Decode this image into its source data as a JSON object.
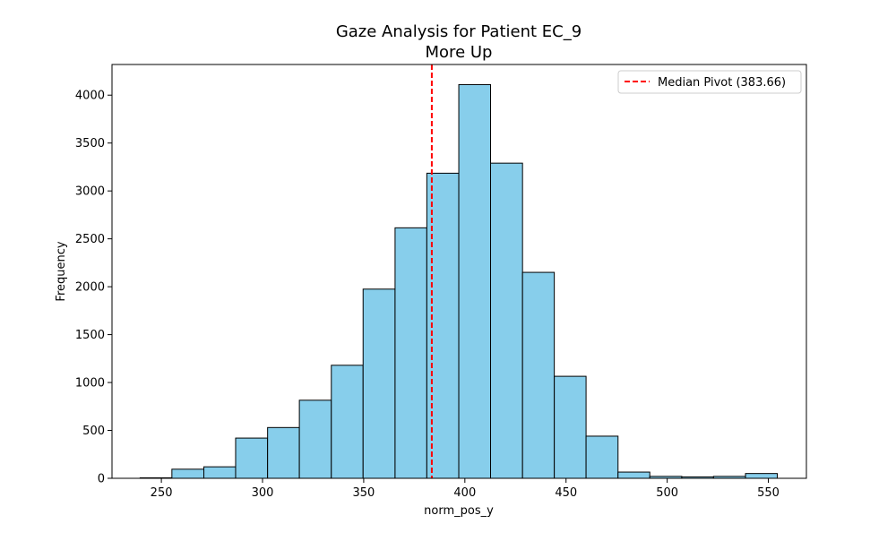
{
  "chart_data": {
    "type": "bar",
    "title": "Gaze Analysis for Patient EC_9",
    "subtitle": "More Up",
    "xlabel": "norm_pos_y",
    "ylabel": "Frequency",
    "xlim": [
      225.6,
      568.8
    ],
    "ylim": [
      0,
      4320
    ],
    "xticks": [
      250,
      300,
      350,
      400,
      450,
      500,
      550
    ],
    "yticks": [
      0,
      500,
      1000,
      1500,
      2000,
      2500,
      3000,
      3500,
      4000
    ],
    "bin_edges": [
      239.5,
      255.2,
      271.0,
      286.7,
      302.5,
      318.2,
      334.0,
      349.7,
      365.5,
      381.2,
      397.0,
      412.7,
      428.5,
      444.2,
      459.9,
      475.7,
      491.4,
      507.2,
      522.9,
      538.7,
      554.4
    ],
    "counts": [
      5,
      95,
      120,
      420,
      530,
      815,
      1180,
      1975,
      2615,
      3185,
      4110,
      3290,
      2150,
      1065,
      440,
      65,
      20,
      15,
      20,
      50
    ],
    "median_line": {
      "value": 383.66,
      "label": "Median Pivot (383.66)"
    },
    "legend_position": "top-right",
    "grid": false,
    "colors": {
      "bar_fill": "#87ceeb",
      "bar_edge": "#000000",
      "median_line": "#ff0000"
    }
  }
}
